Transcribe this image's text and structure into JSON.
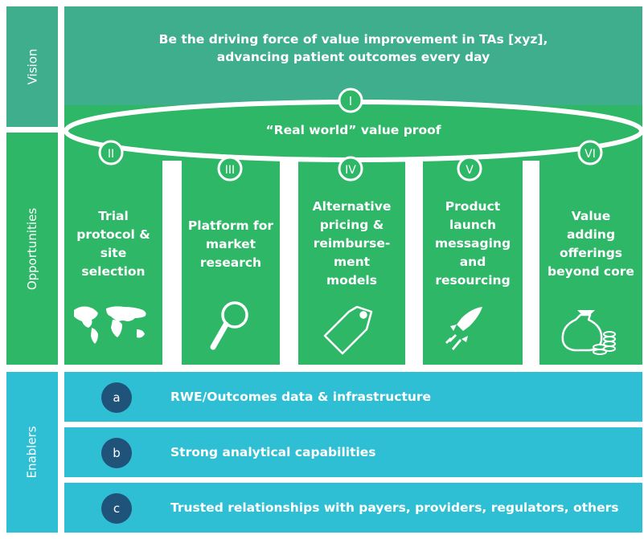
{
  "rows": {
    "vision": "Vision",
    "opportunities": "Opportunities",
    "enablers": "Enablers"
  },
  "vision": {
    "line1": "Be the driving force of value improvement in TAs [xyz],",
    "line2": "advancing patient outcomes every day"
  },
  "ellipse": {
    "label": "“Real world” value proof",
    "numeral": "I"
  },
  "pillars": [
    {
      "numeral": "II",
      "lines": [
        "Trial",
        "protocol &",
        "site",
        "selection"
      ],
      "icon": "world-map-icon"
    },
    {
      "numeral": "III",
      "lines": [
        "Platform for",
        "market",
        "research"
      ],
      "icon": "magnifying-glass-icon"
    },
    {
      "numeral": "IV",
      "lines": [
        "Alternative",
        "pricing &",
        "reimburse-",
        "ment",
        "models"
      ],
      "icon": "price-tag-icon"
    },
    {
      "numeral": "V",
      "lines": [
        "Product",
        "launch",
        "messaging",
        "and",
        "resourcing"
      ],
      "icon": "rocket-icon"
    },
    {
      "numeral": "VI",
      "lines": [
        "Value",
        "adding",
        "offerings",
        "beyond core"
      ],
      "icon": "money-bag-icon"
    }
  ],
  "enablers": [
    {
      "badge": "a",
      "text": "RWE/Outcomes data & infrastructure"
    },
    {
      "badge": "b",
      "text": "Strong analytical capabilities"
    },
    {
      "badge": "c",
      "text": "Trusted relationships with payers, providers, regulators, others"
    }
  ],
  "colors": {
    "vision": "#3fae8d",
    "opportunities": "#2eb767",
    "enablers": "#2fbfd4",
    "badge": "#20537a"
  }
}
